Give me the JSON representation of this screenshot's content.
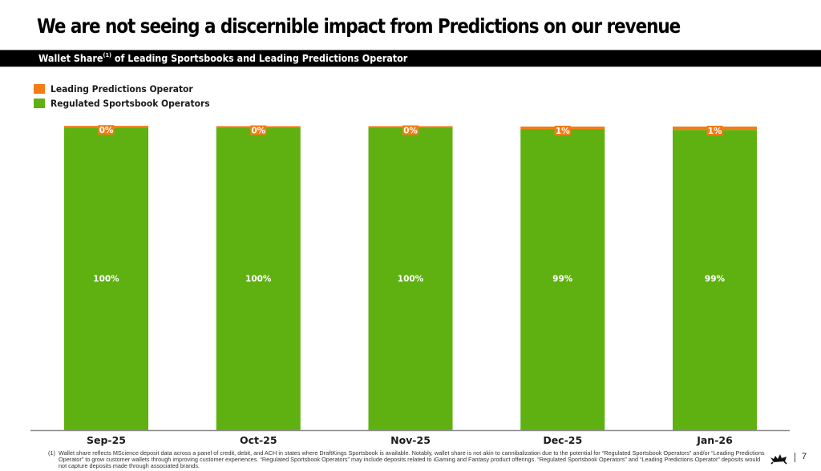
{
  "header": {
    "title": "We are not seeing a discernible impact from Predictions on our revenue",
    "subtitle_main": "Wallet Share",
    "subtitle_sup": "(1)",
    "subtitle_rest": " of Leading Sportsbooks and Leading Predictions Operator"
  },
  "colors": {
    "predictions": "#F57C14",
    "sportsbook": "#5FB111",
    "band": "#000000"
  },
  "chart_data": {
    "type": "bar",
    "stacked": true,
    "title": "Wallet Share(1) of Leading Sportsbooks and Leading Predictions Operator",
    "xlabel": "",
    "ylabel": "",
    "ylim": [
      0,
      100
    ],
    "unit": "%",
    "grid": false,
    "legend_position": "top-left",
    "categories": [
      "Sep-25",
      "Oct-25",
      "Nov-25",
      "Dec-25",
      "Jan-26"
    ],
    "series": [
      {
        "name": "Regulated Sportsbook Operators",
        "color": "#5FB111",
        "values": [
          100,
          100,
          100,
          99,
          99
        ],
        "labels": [
          "100%",
          "100%",
          "100%",
          "99%",
          "99%"
        ]
      },
      {
        "name": "Leading Predictions Operator",
        "color": "#F57C14",
        "values": [
          0.3,
          0.4,
          0.4,
          0.8,
          1.1
        ],
        "labels": [
          "0%",
          "0%",
          "0%",
          "1%",
          "1%"
        ]
      }
    ]
  },
  "legend": [
    {
      "label": "Leading Predictions Operator",
      "color": "#F57C14"
    },
    {
      "label": "Regulated Sportsbook Operators",
      "color": "#5FB111"
    }
  ],
  "footnote": {
    "marker": "(1)",
    "text": "Wallet share reflects MScience deposit data across a panel of credit, debit, and ACH in states where DraftKings Sportsbook is available. Notably, wallet share is not akin to cannibalization due to the potential for “Regulated Sportsbook Operators” and/or “Leading Predictions Operator” to grow customer wallets through improving customer experiences. “Regulated Sportsbook Operators” may include deposits related to iGaming and Fantasy product offerings. “Regulated Sportsbook Operators” and “Leading Predictions Operator” deposits would not capture deposits made through associated brands."
  },
  "footer": {
    "logo_icon": "draftkings-crown-icon",
    "page_number": "7"
  }
}
